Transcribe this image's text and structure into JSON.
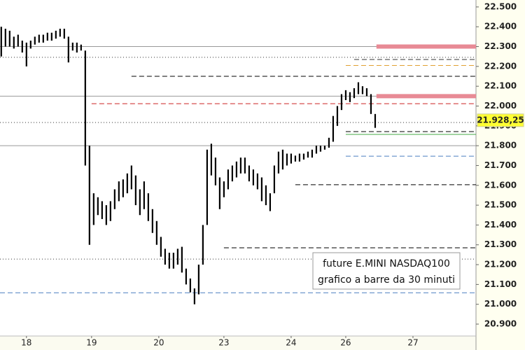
{
  "chart_data": {
    "type": "ohlc",
    "color": "#000000",
    "high": [
      22400,
      22390,
      22380,
      22350,
      22360,
      22330,
      22320,
      22330,
      22350,
      22360,
      22360,
      22370,
      22370,
      22380,
      22390,
      22390,
      22350,
      22320,
      22320,
      22310,
      22280,
      21800,
      21560,
      21540,
      21520,
      21500,
      21520,
      21580,
      21620,
      21630,
      21660,
      21700,
      21650,
      21580,
      21620,
      21560,
      21480,
      21420,
      21340,
      21280,
      21260,
      21260,
      21280,
      21290,
      21180,
      21130,
      21080,
      21200,
      21400,
      21780,
      21810,
      21740,
      21640,
      21620,
      21680,
      21700,
      21720,
      21740,
      21740,
      21700,
      21680,
      21660,
      21640,
      21600,
      21560,
      21700,
      21770,
      21780,
      21760,
      21760,
      21750,
      21760,
      21760,
      21770,
      21780,
      21800,
      21800,
      21800,
      21840,
      21950,
      22000,
      22060,
      22080,
      22070,
      22090,
      22120,
      22100,
      22090,
      22060,
      21960
    ],
    "low": [
      22250,
      22300,
      22300,
      22290,
      22300,
      22270,
      22200,
      22290,
      22310,
      22320,
      22320,
      22330,
      22330,
      22340,
      22350,
      22340,
      22220,
      22280,
      22270,
      22280,
      21700,
      21300,
      21400,
      21450,
      21430,
      21400,
      21420,
      21480,
      21520,
      21540,
      21560,
      21580,
      21500,
      21450,
      21480,
      21420,
      21360,
      21300,
      21240,
      21200,
      21180,
      21180,
      21200,
      21160,
      21100,
      21060,
      21000,
      21050,
      21200,
      21400,
      21650,
      21600,
      21480,
      21540,
      21580,
      21620,
      21640,
      21660,
      21660,
      21620,
      21600,
      21580,
      21520,
      21500,
      21470,
      21560,
      21660,
      21680,
      21700,
      21710,
      21720,
      21720,
      21730,
      21740,
      21740,
      21760,
      21770,
      21780,
      21790,
      21820,
      21900,
      21980,
      22030,
      22020,
      22040,
      22060,
      22060,
      22050,
      21960,
      21890
    ],
    "xlim": [
      -0.3,
      113
    ],
    "xticks": [
      {
        "value": 6,
        "label": "18"
      },
      {
        "value": 21.5,
        "label": "19"
      },
      {
        "value": 37.5,
        "label": "20"
      },
      {
        "value": 53,
        "label": "23"
      },
      {
        "value": 69,
        "label": "24"
      },
      {
        "value": 82,
        "label": "26"
      },
      {
        "value": 98,
        "label": "27"
      }
    ],
    "ylim": [
      20840,
      22535
    ],
    "yticks": [
      {
        "value": 22500,
        "label": "22.500"
      },
      {
        "value": 22400,
        "label": "22.400"
      },
      {
        "value": 22300,
        "label": "22.300"
      },
      {
        "value": 22200,
        "label": "22.200"
      },
      {
        "value": 22100,
        "label": "22.100"
      },
      {
        "value": 22000,
        "label": "22.000"
      },
      {
        "value": 21900,
        "label": "21.900"
      },
      {
        "value": 21800,
        "label": "21.800"
      },
      {
        "value": 21700,
        "label": "21.700"
      },
      {
        "value": 21600,
        "label": "21.600"
      },
      {
        "value": 21500,
        "label": "21.500"
      },
      {
        "value": 21400,
        "label": "21.400"
      },
      {
        "value": 21300,
        "label": "21.300"
      },
      {
        "value": 21200,
        "label": "21.200"
      },
      {
        "value": 21100,
        "label": "21.100"
      },
      {
        "value": 21000,
        "label": "21.000"
      },
      {
        "value": 20900,
        "label": "20.900"
      }
    ],
    "levels": [
      {
        "value": 22300,
        "style": "solid",
        "color": "#999999"
      },
      {
        "value": 22050,
        "style": "solid",
        "color": "#999999"
      },
      {
        "value": 21800,
        "style": "solid",
        "color": "#999999"
      },
      {
        "value": 22246,
        "style": "dotted",
        "color": "#333333"
      },
      {
        "value": 21917,
        "style": "dotted",
        "color": "#333333"
      },
      {
        "value": 21228,
        "style": "dotted",
        "color": "#333333"
      },
      {
        "value": 22150,
        "style": "dashed",
        "color": "#000000",
        "from": 31
      },
      {
        "value": 22012,
        "style": "dashed",
        "color": "#cc2222",
        "from": 21.5
      },
      {
        "value": 21603,
        "style": "dashed",
        "color": "#000000",
        "from": 70
      },
      {
        "value": 21285,
        "style": "dashed",
        "color": "#000000",
        "from": 53
      },
      {
        "value": 21871,
        "style": "dashed",
        "color": "#000000",
        "from": 82
      },
      {
        "value": 22235,
        "style": "dashed",
        "color": "#333333",
        "from": 84
      },
      {
        "value": 22205,
        "style": "dashed",
        "color": "#e0a030",
        "from": 82
      },
      {
        "value": 21857,
        "style": "solid",
        "color": "#44aa44",
        "from": 82
      },
      {
        "value": 21747,
        "style": "dashed",
        "color": "#4a7fc0",
        "from": 82
      },
      {
        "value": 21058,
        "style": "dashed",
        "color": "#4a7fc0"
      },
      {
        "value": 22300,
        "style": "band",
        "color": "#e88a95",
        "from": 89.3
      },
      {
        "value": 22050,
        "style": "band",
        "color": "#e88a95",
        "from": 89.3
      }
    ],
    "last_price": {
      "value": 21928.25,
      "label": "21.928,25"
    },
    "annotation": [
      "future E.MINI NASDAQ100",
      "grafico a barre da 30 minuti"
    ]
  }
}
